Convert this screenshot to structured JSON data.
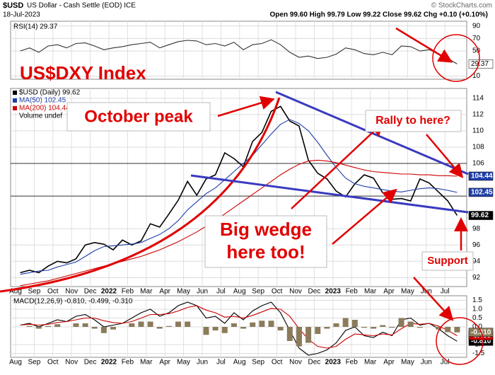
{
  "header": {
    "symbol": "$USD",
    "name": "US Dollar - Cash Settle (EOD) ICE",
    "date": "18-Jul-2023",
    "quote": "Open 99.60  High 99.79  Low 99.22  Close 99.62  Chg +0.10 (+0.10%)",
    "credit": "© StockCharts.com"
  },
  "annotations": [
    "US$DXY Index",
    "October peak",
    "Rally to here?",
    "Big wedge",
    "here too!",
    "Support"
  ],
  "chart_data": [
    {
      "type": "line",
      "title": "RSI(14) 29.37",
      "ylim": [
        5,
        97.5
      ],
      "yticks": [
        10,
        50,
        70,
        90
      ],
      "grid": true,
      "series": [
        {
          "color": "#333333",
          "tag_color": "#ffffff",
          "values": [
            50,
            55,
            48,
            58,
            60,
            55,
            62,
            63,
            58,
            52,
            55,
            57,
            60,
            62,
            64,
            55,
            60,
            65,
            67,
            66,
            60,
            62,
            58,
            64,
            52,
            60,
            62,
            68,
            60,
            48,
            40,
            42,
            38,
            40,
            45,
            55,
            52,
            46,
            44,
            48,
            44,
            58,
            57,
            50,
            52,
            46,
            38,
            29.37
          ]
        }
      ]
    },
    {
      "type": "line",
      "ylim": [
        90.9,
        115.2
      ],
      "yticks": [
        92,
        94,
        96,
        98,
        106,
        108,
        110,
        112,
        114
      ],
      "grid": true,
      "hlines": [
        106,
        102
      ],
      "xtick_labels": [
        "Aug",
        "Sep",
        "Oct",
        "Nov",
        "Dec",
        "2022",
        "Feb",
        "Mar",
        "Apr",
        "May",
        "Jun",
        "Jul",
        "Aug",
        "Sep",
        "Oct",
        "Nov",
        "Dec",
        "2023",
        "Feb",
        "Mar",
        "Apr",
        "May",
        "Jun",
        "Jul"
      ],
      "series": [
        {
          "name": "$USD (Daily) 99.62",
          "color": "#000000",
          "tag_color": "#000000",
          "values": [
            92.6,
            92.9,
            92.6,
            93.4,
            94.0,
            93.8,
            94.3,
            96.0,
            96.3,
            96.1,
            95.4,
            96.6,
            96.0,
            96.5,
            98.6,
            98.2,
            99.8,
            101.5,
            103.8,
            102.1,
            104.1,
            104.6,
            107.3,
            106.6,
            105.6,
            108.7,
            109.8,
            112.4,
            113.0,
            111.2,
            110.6,
            106.4,
            104.8,
            104.1,
            102.6,
            101.9,
            103.5,
            104.6,
            104.2,
            102.4,
            101.6,
            101.7,
            101.4,
            104.1,
            103.6,
            102.5,
            101.4,
            99.62
          ]
        },
        {
          "name": "MA(50) 102.45",
          "color": "#1f3fa8",
          "tag_color": "#1f3fa8",
          "values": [
            92.4,
            92.6,
            92.8,
            92.9,
            93.3,
            93.6,
            93.9,
            94.6,
            95.3,
            95.8,
            95.9,
            96.0,
            96.1,
            96.3,
            96.8,
            97.3,
            98.0,
            99.0,
            100.3,
            101.3,
            102.3,
            103.0,
            104.0,
            105.0,
            106.0,
            107.0,
            108.3,
            109.6,
            110.8,
            111.4,
            110.9,
            110.0,
            108.6,
            107.0,
            105.5,
            104.2,
            103.5,
            103.2,
            103.0,
            102.8,
            102.6,
            102.5,
            102.7,
            102.9,
            103.0,
            102.9,
            102.7,
            102.45
          ]
        },
        {
          "name": "MA(200) 104.44",
          "color": "#cc0000",
          "tag_color": "#1f3fa8",
          "values": [
            91.0,
            91.2,
            91.4,
            91.6,
            91.9,
            92.2,
            92.5,
            92.8,
            93.1,
            93.4,
            93.7,
            94.0,
            94.3,
            94.6,
            95.0,
            95.4,
            95.9,
            96.4,
            97.0,
            97.6,
            98.3,
            99.0,
            99.8,
            100.6,
            101.4,
            102.2,
            103.0,
            103.8,
            104.6,
            105.3,
            105.9,
            106.3,
            106.4,
            106.3,
            106.1,
            105.8,
            105.5,
            105.2,
            105.0,
            104.9,
            104.8,
            104.7,
            104.7,
            104.6,
            104.6,
            104.5,
            104.5,
            104.44
          ]
        }
      ],
      "extra_legend": [
        "Volume undef"
      ]
    },
    {
      "type": "line",
      "title": "MACD(12,26,9) -0.810, -0.499, -0.310",
      "ylim": [
        -1.72,
        1.76
      ],
      "yticks": [
        1.5,
        {
          "value": 1,
          "label": "1.0"
        },
        0.5,
        {
          "value": 0,
          "label": "0.0"
        },
        {
          "value": -1,
          "label": "-1.0"
        },
        -1.5
      ],
      "grid": true,
      "series": [
        {
          "color": "#000000",
          "tag_color": "#000000",
          "values": [
            0.1,
            0.2,
            0.0,
            0.2,
            0.4,
            0.3,
            0.6,
            0.7,
            0.4,
            0.0,
            0.1,
            0.2,
            0.5,
            0.8,
            1.0,
            0.6,
            0.8,
            1.2,
            1.4,
            1.2,
            0.5,
            0.6,
            0.2,
            0.8,
            0.4,
            0.9,
            1.2,
            1.4,
            0.8,
            -0.2,
            -1.2,
            -1.6,
            -1.5,
            -1.3,
            -0.9,
            -0.2,
            0.0,
            -0.5,
            -0.6,
            -0.3,
            -0.5,
            0.4,
            0.5,
            0.1,
            0.2,
            -0.1,
            -0.5,
            -0.81
          ],
          "value_labels": [
            null,
            null,
            null,
            null,
            null,
            null,
            null,
            null,
            null,
            null,
            null,
            null,
            null,
            null,
            null,
            null,
            null,
            null,
            null,
            null,
            null,
            null,
            null,
            null,
            null,
            null,
            null,
            null,
            null,
            null,
            null,
            null,
            null,
            null,
            null,
            null,
            null,
            null,
            null,
            null,
            null,
            null,
            null,
            null,
            null,
            null,
            null,
            "-0.810"
          ]
        },
        {
          "color": "#cc0000",
          "tag_color": "#cc0000",
          "values": [
            0.1,
            0.15,
            0.1,
            0.15,
            0.25,
            0.3,
            0.4,
            0.5,
            0.5,
            0.35,
            0.25,
            0.2,
            0.3,
            0.5,
            0.7,
            0.7,
            0.75,
            0.9,
            1.1,
            1.2,
            0.95,
            0.8,
            0.55,
            0.6,
            0.5,
            0.65,
            0.85,
            1.05,
            1.0,
            0.6,
            -0.1,
            -0.7,
            -1.1,
            -1.2,
            -1.1,
            -0.7,
            -0.4,
            -0.45,
            -0.5,
            -0.4,
            -0.45,
            -0.1,
            0.2,
            0.15,
            0.2,
            0.05,
            -0.2,
            -0.499
          ]
        },
        {
          "kind": "histogram",
          "color": "#8b7b5a",
          "tag_color": "#8b7b5a",
          "values": [
            0,
            0.05,
            -0.1,
            0.05,
            0.15,
            0,
            0.2,
            0.2,
            -0.1,
            -0.35,
            -0.15,
            0,
            0.2,
            0.3,
            0.3,
            -0.1,
            0.05,
            0.3,
            0.3,
            0,
            -0.45,
            -0.2,
            -0.35,
            0.2,
            -0.1,
            0.25,
            0.35,
            0.35,
            -0.2,
            -0.8,
            -1.1,
            -0.9,
            -0.4,
            -0.1,
            0.2,
            0.5,
            0.4,
            -0.05,
            -0.1,
            0.1,
            -0.05,
            0.5,
            0.3,
            -0.05,
            0,
            -0.15,
            -0.3,
            -0.31
          ],
          "value_labels": [
            null,
            null,
            null,
            null,
            null,
            null,
            null,
            null,
            null,
            null,
            null,
            null,
            null,
            null,
            null,
            null,
            null,
            null,
            null,
            null,
            null,
            null,
            null,
            null,
            null,
            null,
            null,
            null,
            null,
            null,
            null,
            null,
            null,
            null,
            null,
            null,
            null,
            null,
            null,
            null,
            null,
            null,
            null,
            null,
            null,
            null,
            null,
            "-0.310"
          ]
        }
      ]
    }
  ]
}
